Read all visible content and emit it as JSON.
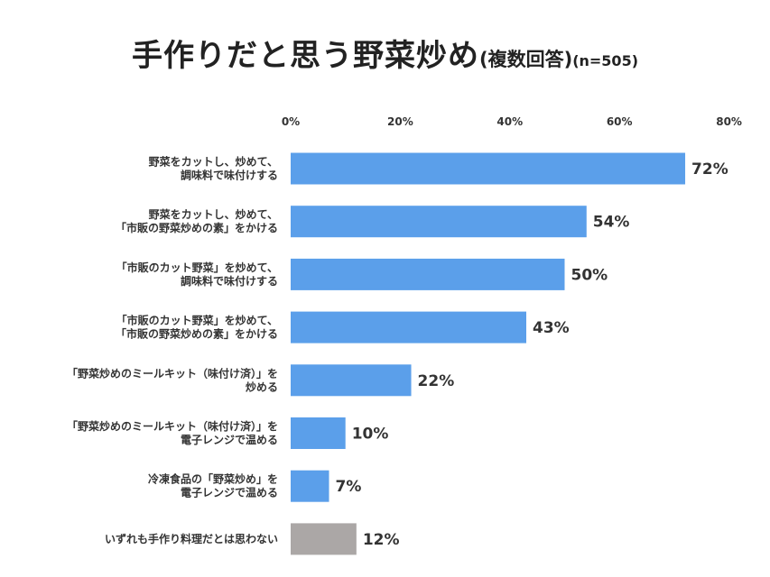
{
  "title": {
    "main": "手作りだと思う野菜炒め",
    "sub": "(複数回答)",
    "n": "(n=505)"
  },
  "colors": {
    "bar": "#5B9FEA",
    "bar_other": "#ABA7A6",
    "text": "#333333"
  },
  "chart_data": {
    "type": "bar",
    "orientation": "horizontal",
    "title": "手作りだと思う野菜炒め(複数回答)(n=505)",
    "xlim": [
      0,
      80
    ],
    "x_ticks": [
      "0%",
      "20%",
      "40%",
      "60%",
      "80%"
    ],
    "x_tick_values": [
      0,
      20,
      40,
      60,
      80
    ],
    "grid": false,
    "legend": "none",
    "categories": [
      [
        "野菜をカットし、炒めて、",
        "調味料で味付けする"
      ],
      [
        "野菜をカットし、炒めて、",
        "「市販の野菜炒めの素」をかける"
      ],
      [
        "「市販のカット野菜」を炒めて、",
        "調味料で味付けする"
      ],
      [
        "「市販のカット野菜」を炒めて、",
        "「市販の野菜炒めの素」をかける"
      ],
      [
        "「野菜炒めのミールキット（味付け済）」を",
        "炒める"
      ],
      [
        "「野菜炒めのミールキット（味付け済）」を",
        "電子レンジで温める"
      ],
      [
        "冷凍食品の「野菜炒め」を",
        "電子レンジで温める"
      ],
      [
        "いずれも手作り料理だとは思わない"
      ]
    ],
    "values": [
      72,
      54,
      50,
      43,
      22,
      10,
      7,
      12
    ],
    "value_labels": [
      "72%",
      "54%",
      "50%",
      "43%",
      "22%",
      "10%",
      "7%",
      "12%"
    ],
    "bar_kinds": [
      "main",
      "main",
      "main",
      "main",
      "main",
      "main",
      "main",
      "other"
    ]
  }
}
